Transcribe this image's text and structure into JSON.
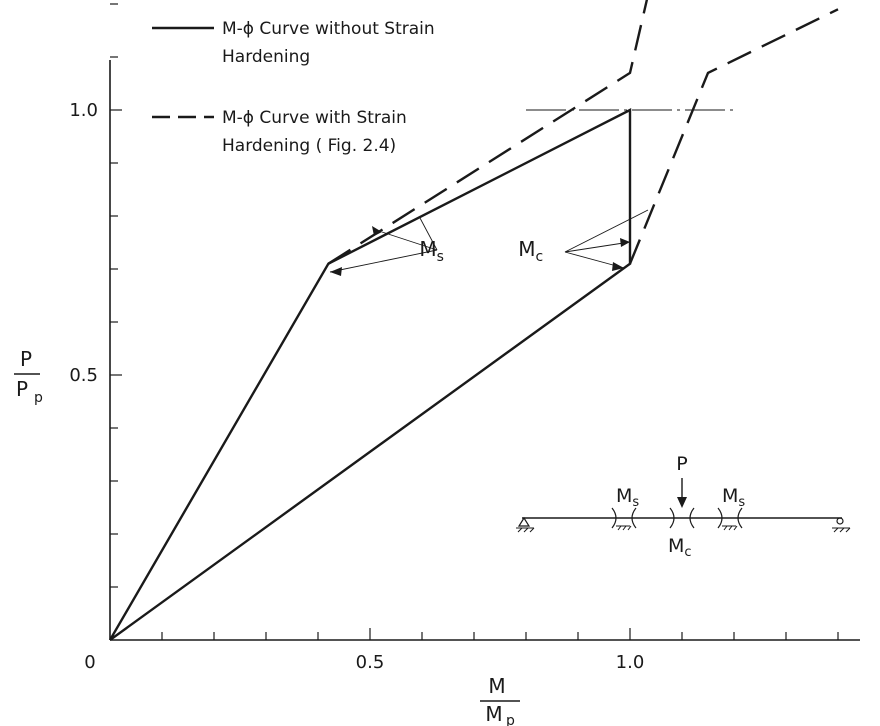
{
  "chart_data": {
    "type": "line",
    "x_ticks": [
      {
        "value": 0,
        "label": "0"
      },
      {
        "value": 0.5,
        "label": "0.5"
      },
      {
        "value": 1.0,
        "label": "1.0"
      }
    ],
    "y_ticks": [
      {
        "value": 0.5,
        "label": "0.5"
      },
      {
        "value": 1.0,
        "label": "1.0"
      }
    ],
    "xlabel": {
      "num": "M",
      "den": "M",
      "den_sub": "p"
    },
    "ylabel": {
      "num": "P",
      "den": "P",
      "den_sub": "p"
    },
    "xlim": [
      0,
      1.45
    ],
    "ylim": [
      0,
      1.2
    ],
    "minor_step": 0.1,
    "legend": {
      "placement": "top-left",
      "entries": [
        {
          "style": "solid",
          "line1": "M-ϕ Curve without Strain",
          "line2": "Hardening"
        },
        {
          "style": "dashed",
          "line1": "M-ϕ Curve with Strain",
          "line2": "Hardening ( Fig. 2.4)"
        }
      ]
    },
    "series": [
      {
        "style": "solid",
        "paths": [
          [
            [
              0,
              0
            ],
            [
              1.0,
              0.71
            ],
            [
              1.0,
              1.0
            ],
            [
              0.42,
              0.71
            ],
            [
              0,
              0
            ]
          ]
        ]
      },
      {
        "style": "dashed",
        "paths": [
          [
            [
              0.42,
              0.71
            ],
            [
              1.0,
              1.07
            ],
            [
              1.04,
              1.24
            ]
          ],
          [
            [
              1.0,
              0.71
            ],
            [
              1.15,
              1.07
            ],
            [
              1.4,
              1.19
            ]
          ]
        ]
      }
    ],
    "reference_line": {
      "y": 1.0,
      "x_from": 0.8,
      "x_to": 1.2
    },
    "annotations": [
      {
        "label": "M",
        "sub": "s",
        "x": 0.595,
        "y": 0.725
      },
      {
        "label": "M",
        "sub": "c",
        "x": 0.785,
        "y": 0.725
      }
    ],
    "inset": {
      "load_label": "P",
      "left_label": {
        "main": "M",
        "sub": "s"
      },
      "right_label": {
        "main": "M",
        "sub": "s"
      },
      "center_label": {
        "main": "M",
        "sub": "c"
      }
    }
  }
}
